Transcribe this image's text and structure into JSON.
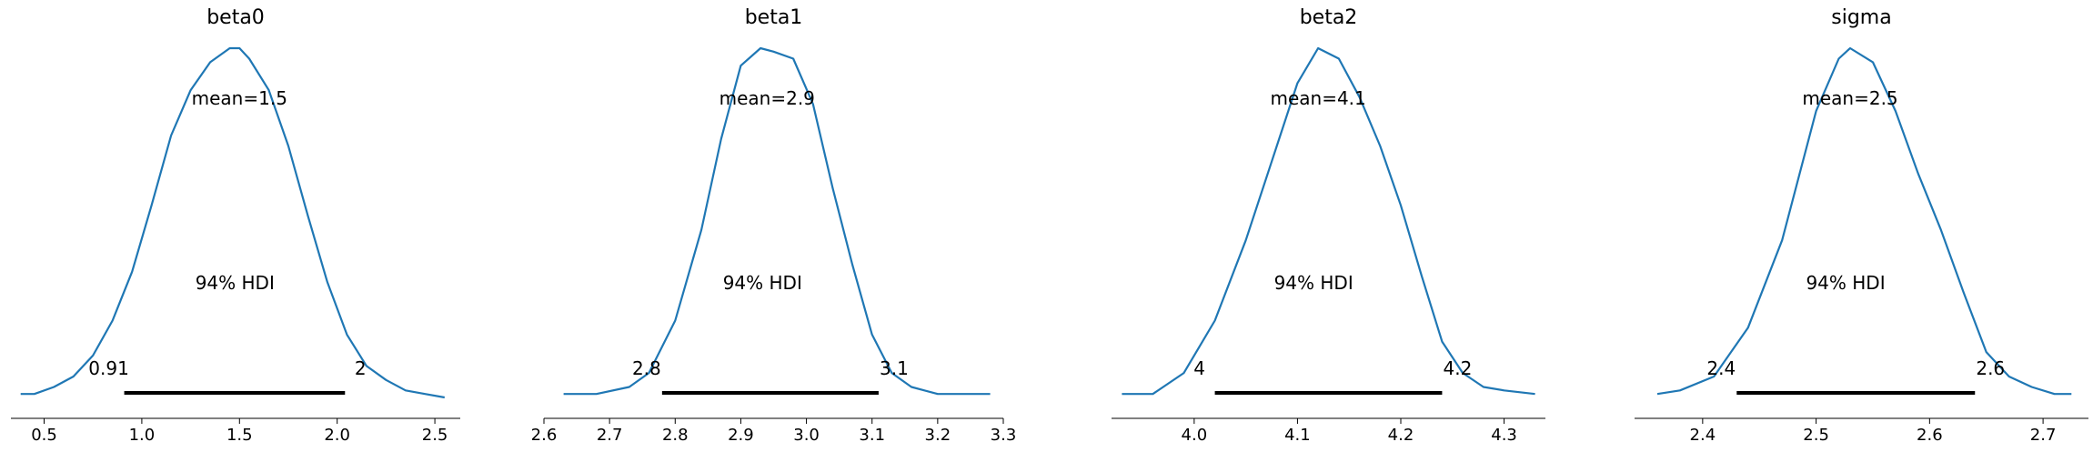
{
  "figure_colors": {
    "density": "#1f77b4",
    "hdi_bar": "#000000",
    "axis": "#000000"
  },
  "hdi_label": "94% HDI",
  "chart_data": [
    {
      "type": "line",
      "title": "beta0",
      "mean_label": "mean=1.5",
      "mean": 1.5,
      "hdi": [
        0.91,
        2.04
      ],
      "hdi_labels": [
        "0.91",
        "2"
      ],
      "xlim": [
        0.33,
        2.63
      ],
      "ylim": [
        0,
        1
      ],
      "xticks": [
        0.5,
        1.0,
        1.5,
        2.0,
        2.5
      ],
      "xtick_labels": [
        "0.5",
        "1.0",
        "1.5",
        "2.0",
        "2.5"
      ],
      "density": {
        "x": [
          0.38,
          0.45,
          0.55,
          0.65,
          0.75,
          0.85,
          0.95,
          1.05,
          1.15,
          1.25,
          1.35,
          1.45,
          1.5,
          1.55,
          1.65,
          1.75,
          1.85,
          1.95,
          2.05,
          2.15,
          2.25,
          2.35,
          2.45,
          2.55
        ],
        "y": [
          0.01,
          0.01,
          0.03,
          0.06,
          0.12,
          0.22,
          0.36,
          0.55,
          0.75,
          0.88,
          0.96,
          1.0,
          1.0,
          0.97,
          0.88,
          0.72,
          0.52,
          0.33,
          0.18,
          0.09,
          0.05,
          0.02,
          0.01,
          0.0
        ]
      }
    },
    {
      "type": "line",
      "title": "beta1",
      "mean_label": "mean=2.9",
      "mean": 2.94,
      "hdi": [
        2.78,
        3.11
      ],
      "hdi_labels": [
        "2.8",
        "3.1"
      ],
      "xlim": [
        2.6,
        3.3
      ],
      "ylim": [
        0,
        1
      ],
      "xticks": [
        2.6,
        2.7,
        2.8,
        2.9,
        3.0,
        3.1,
        3.2,
        3.3
      ],
      "xtick_labels": [
        "2.6",
        "2.7",
        "2.8",
        "2.9",
        "3.0",
        "3.1",
        "3.2",
        "3.3"
      ],
      "density": {
        "x": [
          2.63,
          2.68,
          2.73,
          2.76,
          2.8,
          2.84,
          2.87,
          2.9,
          2.93,
          2.95,
          2.98,
          3.01,
          3.04,
          3.07,
          3.1,
          3.13,
          3.16,
          3.2,
          3.24,
          3.28
        ],
        "y": [
          0.01,
          0.01,
          0.03,
          0.07,
          0.22,
          0.48,
          0.74,
          0.95,
          1.0,
          0.99,
          0.97,
          0.84,
          0.6,
          0.38,
          0.18,
          0.07,
          0.03,
          0.01,
          0.01,
          0.01
        ]
      }
    },
    {
      "type": "line",
      "title": "beta2",
      "mean_label": "mean=4.1",
      "mean": 4.12,
      "hdi": [
        4.02,
        4.24
      ],
      "hdi_labels": [
        "4",
        "4.2"
      ],
      "xlim": [
        3.92,
        4.34
      ],
      "ylim": [
        0,
        1
      ],
      "xticks": [
        4.0,
        4.1,
        4.2,
        4.3
      ],
      "xtick_labels": [
        "4.0",
        "4.1",
        "4.2",
        "4.3"
      ],
      "density": {
        "x": [
          3.93,
          3.96,
          3.99,
          4.02,
          4.05,
          4.08,
          4.1,
          4.12,
          4.14,
          4.16,
          4.18,
          4.2,
          4.22,
          4.24,
          4.26,
          4.28,
          4.3,
          4.33
        ],
        "y": [
          0.01,
          0.01,
          0.07,
          0.22,
          0.45,
          0.72,
          0.9,
          1.0,
          0.97,
          0.86,
          0.72,
          0.55,
          0.35,
          0.16,
          0.07,
          0.03,
          0.02,
          0.01
        ]
      }
    },
    {
      "type": "line",
      "title": "sigma",
      "mean_label": "mean=2.5",
      "mean": 2.53,
      "hdi": [
        2.43,
        2.64
      ],
      "hdi_labels": [
        "2.4",
        "2.6"
      ],
      "xlim": [
        2.34,
        2.74
      ],
      "ylim": [
        0,
        1
      ],
      "xticks": [
        2.4,
        2.5,
        2.6,
        2.7
      ],
      "xtick_labels": [
        "2.4",
        "2.5",
        "2.6",
        "2.7"
      ],
      "density": {
        "x": [
          2.36,
          2.38,
          2.41,
          2.44,
          2.47,
          2.5,
          2.52,
          2.53,
          2.55,
          2.57,
          2.59,
          2.61,
          2.63,
          2.65,
          2.67,
          2.69,
          2.71,
          2.725
        ],
        "y": [
          0.01,
          0.02,
          0.06,
          0.2,
          0.45,
          0.82,
          0.97,
          1.0,
          0.96,
          0.82,
          0.64,
          0.48,
          0.3,
          0.13,
          0.06,
          0.03,
          0.01,
          0.01
        ]
      }
    }
  ]
}
